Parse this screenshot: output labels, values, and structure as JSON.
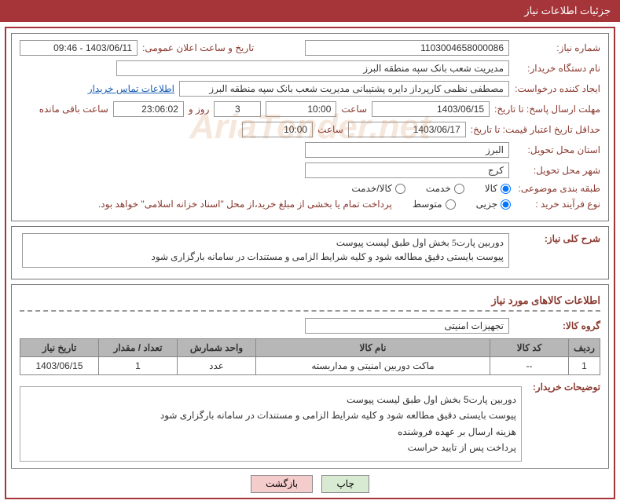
{
  "header": {
    "title": "جزئیات اطلاعات نیاز"
  },
  "info": {
    "need_no_label": "شماره نیاز:",
    "need_no": "1103004658000086",
    "announce_label": "تاریخ و ساعت اعلان عمومی:",
    "announce": "1403/06/11 - 09:46",
    "buyer_org_label": "نام دستگاه خریدار:",
    "buyer_org": "مدیریت شعب بانک سپه منطقه البرز",
    "requester_label": "ایجاد کننده درخواست:",
    "requester": "مصطفی نظمی کارپرداز دایره پشتیبانی مدیریت شعب بانک سپه منطقه البرز",
    "buyer_contact": "اطلاعات تماس خریدار",
    "reply_deadline_label": "مهلت ارسال پاسخ: تا تاریخ:",
    "reply_date": "1403/06/15",
    "saat": "ساعت",
    "reply_time": "10:00",
    "days": "3",
    "rooz_va": "روز و",
    "remain_time": "23:06:02",
    "remain_label": "ساعت باقی مانده",
    "validity_label": "حداقل تاریخ اعتبار قیمت: تا تاریخ:",
    "validity_date": "1403/06/17",
    "validity_time": "10:00",
    "province_label": "استان محل تحویل:",
    "province": "البرز",
    "city_label": "شهر محل تحویل:",
    "city": "کرج",
    "class_label": "طبقه بندی موضوعی:",
    "class_goods": "کالا",
    "class_service": "خدمت",
    "class_both": "کالا/خدمت",
    "process_label": "نوع فرآیند خرید :",
    "process_partial": "جزیی",
    "process_medium": "متوسط",
    "payment_note": "پرداخت تمام یا بخشی از مبلغ خرید،از محل \"اسناد خزانه اسلامی\" خواهد بود."
  },
  "desc": {
    "title": "شرح کلی نیاز:",
    "text": "دوربین پارت5 بخش اول طبق لیست پیوست\nپیوست بایستی دقیق مطالعه شود و کلیه شرایط الزامی و مستندات در سامانه بارگزاری شود"
  },
  "items": {
    "section_title": "اطلاعات کالاهای مورد نیاز",
    "group_label": "گروه کالا:",
    "group": "تجهیزات امنیتی",
    "headers": {
      "row": "ردیف",
      "code": "کد کالا",
      "name": "نام کالا",
      "unit": "واحد شمارش",
      "qty": "تعداد / مقدار",
      "date": "تاریخ نیاز"
    },
    "rows": [
      {
        "n": "1",
        "code": "--",
        "name": "ماکت دوربین امنیتی و مداربسته",
        "unit": "عدد",
        "qty": "1",
        "date": "1403/06/15"
      }
    ]
  },
  "buyer_note": {
    "label": "توضیحات خریدار:",
    "line1": "دوربین پارت5 بخش اول طبق لیست پیوست",
    "line2": "پیوست بایستی دقیق مطالعه شود و کلیه شرایط الزامی و مستندات در سامانه بارگزاری شود",
    "line3": "هزینه ارسال بر عهده فروشنده",
    "line4": "پرداخت پس از تایید حراست"
  },
  "buttons": {
    "print": "چاپ",
    "back": "بازگشت"
  },
  "watermark": "AriaTender.net"
}
